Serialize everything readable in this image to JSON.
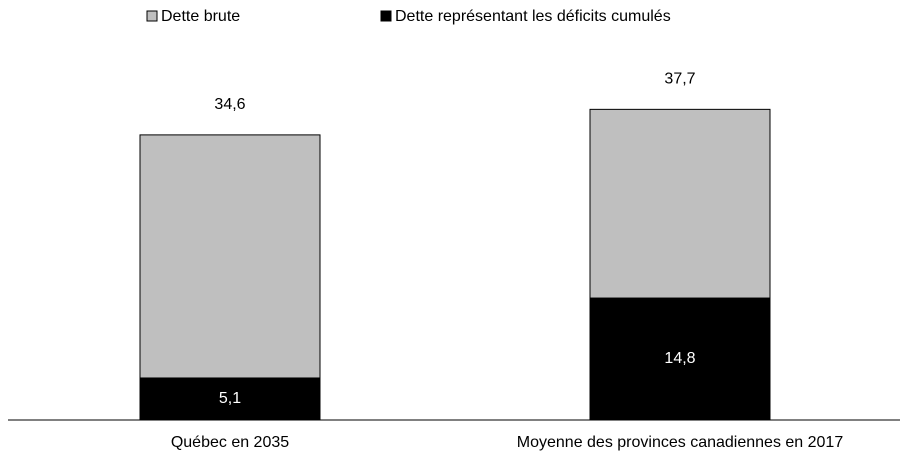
{
  "chart_data": {
    "type": "overlap-bar",
    "categories": [
      "Québec en 2035",
      "Moyenne des provinces canadiennes en 2017"
    ],
    "series": [
      {
        "name": "Dette brute",
        "color": "#bfbfbf",
        "values": [
          34.6,
          37.7
        ],
        "value_labels": [
          "34,6",
          "37,7"
        ]
      },
      {
        "name": "Dette représentant les déficits cumulés",
        "color": "#000000",
        "values": [
          5.1,
          14.8
        ],
        "value_labels": [
          "5,1",
          "14,8"
        ]
      }
    ]
  }
}
